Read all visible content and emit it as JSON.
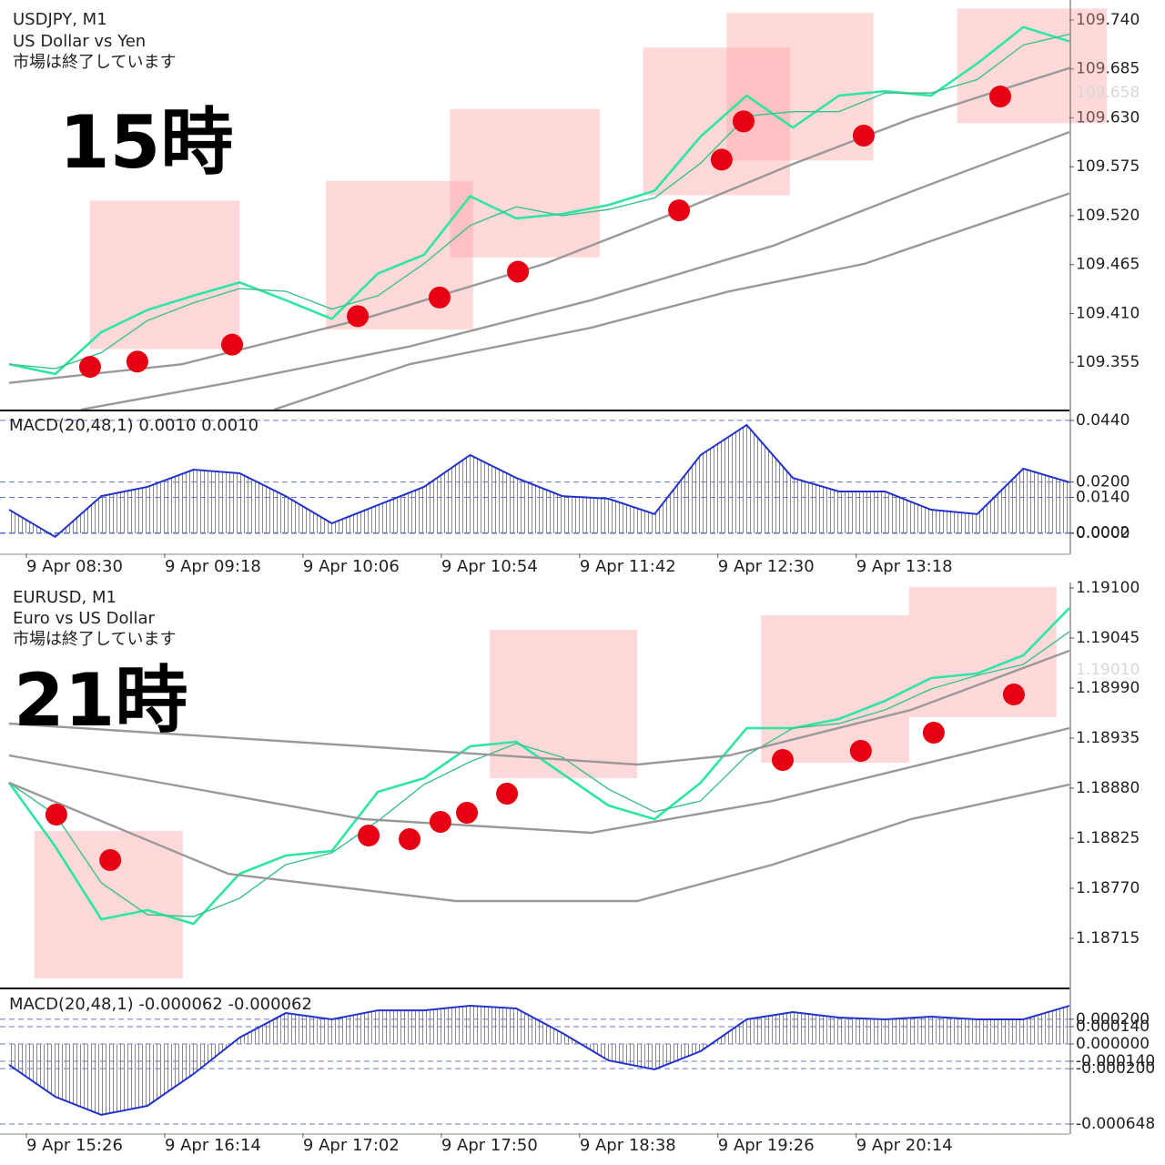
{
  "chart_data": [
    {
      "type": "line",
      "title": "USDJPY, M1",
      "subtitle": "US Dollar vs Yen",
      "status": "市場は終了しています",
      "annotation": "15時",
      "xlim": [
        0,
        368
      ],
      "ylim": [
        109.302,
        109.7625
      ],
      "yticks": [
        {
          "value": 109.74,
          "label": "109.740"
        },
        109.685,
        {
          "value": 109.63,
          "label": "109.630"
        },
        109.575,
        {
          "value": 109.52,
          "label": "109.520"
        },
        109.465,
        {
          "value": 109.41,
          "label": "109.410"
        },
        109.355
      ],
      "last_price": 109.658,
      "x": [
        0,
        16,
        32,
        48,
        64,
        80,
        96,
        112,
        128,
        144,
        160,
        176,
        192,
        208,
        224,
        240,
        256,
        272,
        288,
        304,
        320,
        336,
        352,
        368
      ],
      "series": [
        {
          "color": "#2ee6a0",
          "values": [
            109.353,
            109.342,
            109.389,
            109.414,
            109.43,
            109.445,
            109.425,
            109.404,
            109.455,
            109.476,
            109.542,
            109.517,
            109.522,
            109.532,
            109.548,
            109.609,
            109.655,
            109.619,
            109.655,
            109.66,
            109.655,
            109.691,
            109.732,
            109.716
          ]
        },
        {
          "color": "#3cc08c",
          "values": [
            109.353,
            109.348,
            109.366,
            109.402,
            109.422,
            109.438,
            109.435,
            109.415,
            109.43,
            109.466,
            109.509,
            109.53,
            109.52,
            109.527,
            109.54,
            109.579,
            109.632,
            109.637,
            109.637,
            109.658,
            109.658,
            109.673,
            109.712,
            109.724
          ]
        },
        {
          "color": "#999999",
          "x": [
            0,
            60,
            123,
            186,
            234,
            272,
            313,
            368
          ],
          "values": [
            109.332,
            109.353,
            109.404,
            109.466,
            109.527,
            109.578,
            109.629,
            109.686
          ]
        },
        {
          "color": "#999999",
          "x": [
            25,
            76,
            139,
            202,
            265,
            313,
            368
          ],
          "values": [
            109.302,
            109.332,
            109.373,
            109.425,
            109.486,
            109.547,
            109.614
          ]
        },
        {
          "color": "#999999",
          "x": [
            92,
            139,
            202,
            250,
            297,
            368
          ],
          "values": [
            109.302,
            109.353,
            109.394,
            109.435,
            109.466,
            109.545
          ]
        }
      ],
      "points": {
        "color": "#e60012",
        "x": [
          28.1,
          44.5,
          77.4,
          121,
          149.4,
          176.6,
          232.5,
          247.3,
          254.9,
          296.6,
          344
        ],
        "y": [
          109.35,
          109.356,
          109.375,
          109.407,
          109.428,
          109.457,
          109.526,
          109.583,
          109.626,
          109.61,
          109.654
        ]
      },
      "highlights": [
        {
          "x": [
            28,
            80
          ],
          "y": [
            109.37,
            109.537
          ]
        },
        {
          "x": [
            110,
            161
          ],
          "y": [
            109.392,
            109.559
          ]
        },
        {
          "x": [
            153,
            205
          ],
          "y": [
            109.473,
            109.64
          ]
        },
        {
          "x": [
            220,
            271
          ],
          "y": [
            109.543,
            109.709
          ]
        },
        {
          "x": [
            249,
            300
          ],
          "y": [
            109.582,
            109.748
          ]
        },
        {
          "x": [
            329,
            381
          ],
          "y": [
            109.624,
            109.753
          ]
        }
      ]
    },
    {
      "type": "area",
      "title": "MACD(20,48,1) 0.0010 0.0010",
      "color": "#2233cc",
      "xlim": [
        0,
        368
      ],
      "ylim": [
        -0.0078,
        0.0475
      ],
      "yticks": [
        {
          "value": 0.044,
          "label": "0.0440"
        },
        {
          "value": 0.02,
          "label": "0.0200"
        },
        {
          "value": 0.014,
          "label": "0.0140"
        },
        {
          "value": 0.0002,
          "label": "0.0002"
        },
        {
          "value": 0,
          "label": "0.0000"
        }
      ],
      "xticks": [
        {
          "value": 6,
          "label": "9 Apr 08:30"
        },
        {
          "value": 54,
          "label": "9 Apr 09:18"
        },
        {
          "value": 102,
          "label": "9 Apr 10:06"
        },
        {
          "value": 150,
          "label": "9 Apr 10:54"
        },
        {
          "value": 198,
          "label": "9 Apr 11:42"
        },
        {
          "value": 246,
          "label": "9 Apr 12:30"
        },
        {
          "value": 294,
          "label": "9 Apr 13:18"
        }
      ],
      "x": [
        0,
        16,
        32,
        48,
        64,
        80,
        96,
        112,
        128,
        144,
        160,
        176,
        192,
        208,
        224,
        240,
        256,
        272,
        288,
        304,
        320,
        336,
        352,
        368
      ],
      "values": [
        0.0092,
        -0.0014,
        0.0145,
        0.0181,
        0.0248,
        0.0234,
        0.0145,
        0.0039,
        0.011,
        0.0181,
        0.0305,
        0.0216,
        0.0145,
        0.0135,
        0.0075,
        0.0305,
        0.0422,
        0.0216,
        0.0163,
        0.0163,
        0.0092,
        0.0075,
        0.0252,
        0.0199
      ]
    },
    {
      "type": "line",
      "title": "EURUSD, M1",
      "subtitle": "Euro vs US Dollar",
      "status": "市場は終了しています",
      "annotation": "21時",
      "xlim": [
        0,
        368
      ],
      "ylim": [
        1.18661,
        1.19106
      ],
      "yticks": [
        {
          "value": 1.191,
          "label": "1.19100"
        },
        1.19045,
        {
          "value": 1.1899,
          "label": "1.18990"
        },
        1.18935,
        {
          "value": 1.1888,
          "label": "1.18880"
        },
        1.18825,
        {
          "value": 1.1877,
          "label": "1.18770"
        },
        1.18715
      ],
      "last_price": {
        "value": 1.1901,
        "label": "1.19010"
      },
      "x": [
        0,
        16,
        32,
        48,
        64,
        80,
        96,
        112,
        128,
        144,
        160,
        176,
        192,
        208,
        224,
        240,
        256,
        272,
        288,
        304,
        320,
        336,
        352,
        368
      ],
      "series": [
        {
          "color": "#2ee6a0",
          "values": [
            1.18886,
            1.18816,
            1.18736,
            1.18746,
            1.18731,
            1.18786,
            1.18806,
            1.18811,
            1.18876,
            1.18891,
            1.18926,
            1.18931,
            1.18896,
            1.18861,
            1.18846,
            1.18886,
            1.18946,
            1.18946,
            1.18956,
            1.18976,
            1.19001,
            1.19006,
            1.19026,
            1.19078
          ]
        },
        {
          "color": "#3cc08c",
          "values": [
            1.18886,
            1.18851,
            1.18776,
            1.18741,
            1.18739,
            1.18759,
            1.18796,
            1.18809,
            1.18844,
            1.18884,
            1.18909,
            1.18929,
            1.18914,
            1.18879,
            1.18854,
            1.18866,
            1.18916,
            1.18946,
            1.18951,
            1.18966,
            1.18989,
            1.19004,
            1.19016,
            1.19052
          ]
        },
        {
          "color": "#999999",
          "x": [
            0,
            123,
            218,
            250,
            313,
            368
          ],
          "values": [
            1.18951,
            1.18926,
            1.18906,
            1.18916,
            1.18966,
            1.19031
          ]
        },
        {
          "color": "#999999",
          "x": [
            0,
            123,
            202,
            265,
            368
          ],
          "values": [
            1.18916,
            1.18846,
            1.18831,
            1.18866,
            1.18946
          ]
        },
        {
          "color": "#999999",
          "x": [
            0,
            76,
            155,
            218,
            265,
            313,
            368
          ],
          "values": [
            1.18886,
            1.18786,
            1.18756,
            1.18756,
            1.18796,
            1.18846,
            1.18884
          ]
        }
      ],
      "points": {
        "color": "#e60012",
        "x": [
          16.4,
          35.1,
          124.8,
          139,
          149.7,
          158.9,
          172.8,
          268.5,
          295.6,
          320.9,
          348.7
        ],
        "y": [
          1.18851,
          1.18801,
          1.18828,
          1.18824,
          1.18843,
          1.18853,
          1.18874,
          1.18911,
          1.18921,
          1.18941,
          1.18983
        ]
      },
      "highlights": [
        {
          "x": [
            8.8,
            60.3
          ],
          "y": [
            1.18671,
            1.18833
          ]
        },
        {
          "x": [
            166.8,
            218
          ],
          "y": [
            1.18891,
            1.19054
          ]
        },
        {
          "x": [
            261,
            312.4
          ],
          "y": [
            1.18908,
            1.1907
          ]
        },
        {
          "x": [
            312.4,
            363.5
          ],
          "y": [
            1.18958,
            1.19101
          ]
        }
      ]
    },
    {
      "type": "area",
      "title": "MACD(20,48,1) -0.000062 -0.000062",
      "color": "#2233cc",
      "xlim": [
        0,
        368
      ],
      "ylim": [
        -0.000722,
        0.000442
      ],
      "yticks": [
        {
          "value": 0.0002,
          "label": "0.000200"
        },
        {
          "value": 0.00014,
          "label": "0.000140"
        },
        {
          "value": 0,
          "label": "0.000000"
        },
        {
          "value": -0.00014,
          "label": "-0.000140"
        },
        {
          "value": -0.0002,
          "label": "-0.000200"
        },
        {
          "value": -0.000648,
          "label": "-0.000648"
        }
      ],
      "xticks": [
        {
          "value": 6,
          "label": "9 Apr 15:26"
        },
        {
          "value": 54,
          "label": "9 Apr 16:14"
        },
        {
          "value": 102,
          "label": "9 Apr 17:02"
        },
        {
          "value": 150,
          "label": "9 Apr 17:50"
        },
        {
          "value": 198,
          "label": "9 Apr 18:38"
        },
        {
          "value": 246,
          "label": "9 Apr 19:26"
        },
        {
          "value": 294,
          "label": "9 Apr 20:14"
        }
      ],
      "x": [
        0,
        16,
        32,
        48,
        64,
        80,
        96,
        112,
        128,
        144,
        160,
        176,
        192,
        208,
        224,
        240,
        256,
        272,
        288,
        304,
        320,
        336,
        352,
        368
      ],
      "values": [
        -0.000169,
        -0.000427,
        -0.000574,
        -0.000501,
        -0.000243,
        5.2e-05,
        0.00025,
        0.000199,
        0.000272,
        0.000272,
        0.000309,
        0.000287,
        8.8e-05,
        -0.000133,
        -0.000206,
        -5.9e-05,
        0.000199,
        0.000258,
        0.000214,
        0.000199,
        0.000221,
        0.000199,
        0.000199,
        0.000309
      ]
    }
  ]
}
